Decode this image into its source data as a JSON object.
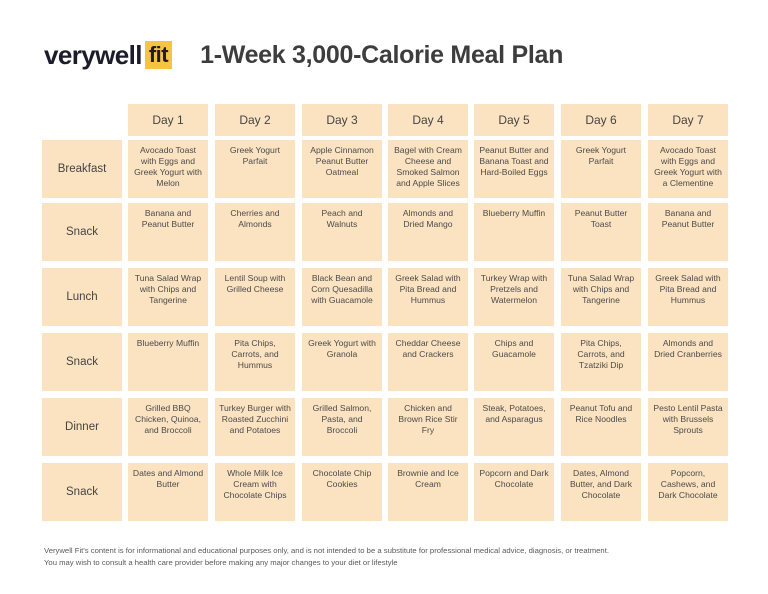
{
  "brand": {
    "word": "verywell",
    "suffix": "fit",
    "accent_color": "#f6c343"
  },
  "title": "1-Week 3,000-Calorie Meal Plan",
  "cell_color": "#fbe3c2",
  "days": [
    "Day 1",
    "Day 2",
    "Day 3",
    "Day 4",
    "Day 5",
    "Day 6",
    "Day 7"
  ],
  "rows": [
    {
      "label": "Breakfast",
      "meals": [
        "Avocado Toast with Eggs and Greek Yogurt with Melon",
        "Greek Yogurt Parfait",
        "Apple Cinnamon Peanut Butter Oatmeal",
        "Bagel with Cream Cheese and Smoked Salmon and Apple Slices",
        "Peanut Butter and Banana Toast and Hard-Boiled Eggs",
        "Greek Yogurt Parfait",
        "Avocado Toast with Eggs and Greek Yogurt with a Clementine"
      ]
    },
    {
      "label": "Snack",
      "meals": [
        "Banana and Peanut Butter",
        "Cherries and Almonds",
        "Peach and Walnuts",
        "Almonds and Dried Mango",
        "Blueberry Muffin",
        "Peanut Butter Toast",
        "Banana and Peanut Butter"
      ]
    },
    {
      "label": "Lunch",
      "meals": [
        "Tuna Salad Wrap with Chips and Tangerine",
        "Lentil Soup with Grilled Cheese",
        "Black Bean and Corn Quesadilla with Guacamole",
        "Greek Salad with Pita Bread and Hummus",
        "Turkey Wrap with Pretzels and Watermelon",
        "Tuna Salad Wrap with Chips and Tangerine",
        "Greek Salad with Pita Bread and Hummus"
      ]
    },
    {
      "label": "Snack",
      "meals": [
        "Blueberry Muffin",
        "Pita Chips, Carrots, and Hummus",
        "Greek Yogurt with Granola",
        "Cheddar Cheese and Crackers",
        "Chips and Guacamole",
        "Pita Chips, Carrots, and Tzatziki Dip",
        "Almonds and Dried Cranberries"
      ]
    },
    {
      "label": "Dinner",
      "meals": [
        "Grilled BBQ Chicken, Quinoa, and Broccoli",
        "Turkey Burger with Roasted Zucchini and Potatoes",
        "Grilled Salmon, Pasta, and Broccoli",
        "Chicken and Brown Rice Stir Fry",
        "Steak, Potatoes, and Asparagus",
        "Peanut Tofu and Rice Noodles",
        "Pesto Lentil Pasta with Brussels Sprouts"
      ]
    },
    {
      "label": "Snack",
      "meals": [
        "Dates and Almond Butter",
        "Whole Milk Ice Cream with Chocolate Chips",
        "Chocolate Chip Cookies",
        "Brownie and Ice Cream",
        "Popcorn and Dark Chocolate",
        "Dates, Almond Butter, and Dark Chocolate",
        "Popcorn, Cashews, and Dark Chocolate"
      ]
    }
  ],
  "disclaimer": [
    "Verywell Fit's content is for informational and educational purposes only, and is not intended to be a substitute for professional medical advice, diagnosis, or treatment.",
    "You may wish to consult a health care provider before making any major changes to your diet or lifestyle"
  ]
}
